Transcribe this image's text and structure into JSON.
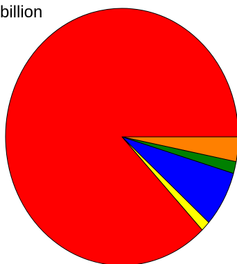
{
  "chart_data": {
    "type": "pie",
    "title": "billion",
    "slices": [
      {
        "value": 3.1,
        "color": "#ff8000"
      },
      {
        "value": 1.5,
        "color": "#008000"
      },
      {
        "value": 7.0,
        "color": "#0000ff"
      },
      {
        "value": 1.3,
        "color": "#ffff00"
      },
      {
        "value": 87.1,
        "color": "#ff0000"
      }
    ],
    "start_angle_deg": 0,
    "direction": "clockwise",
    "edge_color": "#000000"
  }
}
